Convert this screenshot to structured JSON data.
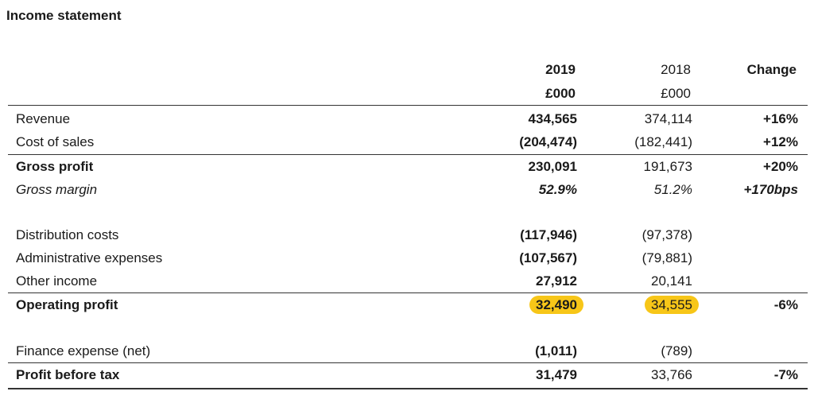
{
  "title": "Income statement",
  "columns": {
    "y2019": "2019",
    "y2019_unit": "£000",
    "y2018": "2018",
    "y2018_unit": "£000",
    "change": "Change"
  },
  "rows": [
    {
      "label": "Revenue",
      "v2019": "434,565",
      "v2018": "374,114",
      "change": "+16%"
    },
    {
      "label": "Cost of sales",
      "v2019": "(204,474)",
      "v2018": "(182,441)",
      "change": "+12%"
    },
    {
      "label": "Gross profit",
      "v2019": "230,091",
      "v2018": "191,673",
      "change": "+20%"
    },
    {
      "label": "Gross margin",
      "v2019": "52.9%",
      "v2018": "51.2%",
      "change": "+170bps"
    },
    {
      "label": "Distribution costs",
      "v2019": "(117,946)",
      "v2018": "(97,378)",
      "change": ""
    },
    {
      "label": "Administrative expenses",
      "v2019": "(107,567)",
      "v2018": "(79,881)",
      "change": ""
    },
    {
      "label": "Other income",
      "v2019": "27,912",
      "v2018": "20,141",
      "change": ""
    },
    {
      "label": "Operating profit",
      "v2019": "32,490",
      "v2018": "34,555",
      "change": "-6%"
    },
    {
      "label": "Finance expense (net)",
      "v2019": "(1,011)",
      "v2018": "(789)",
      "change": ""
    },
    {
      "label": "Profit before tax",
      "v2019": "31,479",
      "v2018": "33,766",
      "change": "-7%"
    }
  ],
  "highlight_color": "#f7c618"
}
